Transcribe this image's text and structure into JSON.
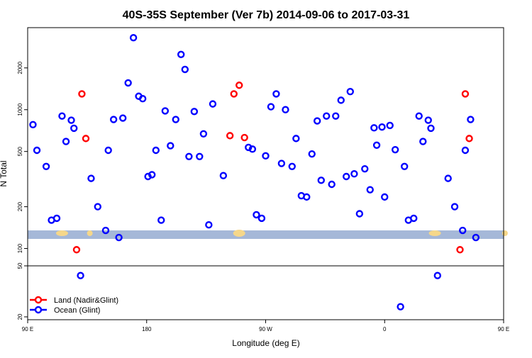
{
  "chart_data": {
    "type": "scatter",
    "title": "40S-35S September (Ver 7b)   2014-09-06 to 2017-03-31",
    "xlabel": "Longitude (deg E)",
    "ylabel": "N Total",
    "x_scale": "longitude",
    "y_scale": "log",
    "xlim": [
      90,
      450
    ],
    "upper_ylim": [
      75,
      3900
    ],
    "lower_ylim": [
      19,
      50
    ],
    "x_ticks": [
      {
        "value": 90,
        "label": "90 E"
      },
      {
        "value": 180,
        "label": "180"
      },
      {
        "value": 270,
        "label": "90 W"
      },
      {
        "value": 360,
        "label": "0"
      },
      {
        "value": 450,
        "label": "90 E"
      },
      {
        "value": 540,
        "label": "180"
      }
    ],
    "y_ticks_upper": [
      {
        "value": 100,
        "label": "100"
      },
      {
        "value": 200,
        "label": "200"
      },
      {
        "value": 500,
        "label": "500"
      },
      {
        "value": 1000,
        "label": "1000"
      },
      {
        "value": 2000,
        "label": "2000"
      }
    ],
    "y_ticks_lower": [
      {
        "value": 20,
        "label": "20"
      },
      {
        "value": 50,
        "label": "50"
      }
    ],
    "grid": false,
    "legend_position": "bottom-left",
    "land_band_color": "#a5b8d8",
    "land_color": "#f5d78a",
    "series": [
      {
        "name": "Land (Nadir&Glint)",
        "color": "#ff0000",
        "points": [
          {
            "x": 127,
            "y": 98
          },
          {
            "x": 131,
            "y": 1300
          },
          {
            "x": 134,
            "y": 620
          },
          {
            "x": 243,
            "y": 650
          },
          {
            "x": 246,
            "y": 1300
          },
          {
            "x": 250,
            "y": 1500
          },
          {
            "x": 254,
            "y": 630
          },
          {
            "x": 417,
            "y": 98
          },
          {
            "x": 421,
            "y": 1300
          },
          {
            "x": 424,
            "y": 620
          }
        ]
      },
      {
        "name": "Ocean (Glint)",
        "color": "#0000ff",
        "points": [
          {
            "x": 94,
            "y": 780
          },
          {
            "x": 97,
            "y": 510
          },
          {
            "x": 104,
            "y": 390
          },
          {
            "x": 108,
            "y": 160
          },
          {
            "x": 112,
            "y": 165
          },
          {
            "x": 116,
            "y": 900
          },
          {
            "x": 119,
            "y": 590
          },
          {
            "x": 123,
            "y": 840
          },
          {
            "x": 125,
            "y": 735
          },
          {
            "x": 130,
            "y": 42
          },
          {
            "x": 138,
            "y": 320
          },
          {
            "x": 143,
            "y": 200
          },
          {
            "x": 149,
            "y": 135
          },
          {
            "x": 151,
            "y": 510
          },
          {
            "x": 155,
            "y": 850
          },
          {
            "x": 159,
            "y": 120
          },
          {
            "x": 162,
            "y": 870
          },
          {
            "x": 166,
            "y": 1560
          },
          {
            "x": 170,
            "y": 3300
          },
          {
            "x": 174,
            "y": 1250
          },
          {
            "x": 177,
            "y": 1200
          },
          {
            "x": 181,
            "y": 330
          },
          {
            "x": 184,
            "y": 340
          },
          {
            "x": 187,
            "y": 510
          },
          {
            "x": 191,
            "y": 160
          },
          {
            "x": 194,
            "y": 980
          },
          {
            "x": 198,
            "y": 550
          },
          {
            "x": 202,
            "y": 850
          },
          {
            "x": 206,
            "y": 2500
          },
          {
            "x": 209,
            "y": 1950
          },
          {
            "x": 212,
            "y": 460
          },
          {
            "x": 216,
            "y": 970
          },
          {
            "x": 220,
            "y": 460
          },
          {
            "x": 223,
            "y": 670
          },
          {
            "x": 227,
            "y": 148
          },
          {
            "x": 230,
            "y": 1100
          },
          {
            "x": 238,
            "y": 335
          },
          {
            "x": 257,
            "y": 535
          },
          {
            "x": 260,
            "y": 520
          },
          {
            "x": 263,
            "y": 175
          },
          {
            "x": 267,
            "y": 165
          },
          {
            "x": 270,
            "y": 465
          },
          {
            "x": 274,
            "y": 1050
          },
          {
            "x": 278,
            "y": 1300
          },
          {
            "x": 282,
            "y": 410
          },
          {
            "x": 285,
            "y": 1000
          },
          {
            "x": 290,
            "y": 390
          },
          {
            "x": 293,
            "y": 620
          },
          {
            "x": 297,
            "y": 240
          },
          {
            "x": 301,
            "y": 235
          },
          {
            "x": 305,
            "y": 480
          },
          {
            "x": 309,
            "y": 830
          },
          {
            "x": 312,
            "y": 310
          },
          {
            "x": 316,
            "y": 900
          },
          {
            "x": 320,
            "y": 290
          },
          {
            "x": 323,
            "y": 900
          },
          {
            "x": 327,
            "y": 1170
          },
          {
            "x": 331,
            "y": 330
          },
          {
            "x": 334,
            "y": 1350
          },
          {
            "x": 337,
            "y": 345
          },
          {
            "x": 341,
            "y": 178
          },
          {
            "x": 345,
            "y": 375
          },
          {
            "x": 349,
            "y": 265
          },
          {
            "x": 352,
            "y": 740
          },
          {
            "x": 354,
            "y": 555
          },
          {
            "x": 358,
            "y": 750
          },
          {
            "x": 360,
            "y": 235
          },
          {
            "x": 364,
            "y": 770
          },
          {
            "x": 368,
            "y": 515
          },
          {
            "x": 372,
            "y": 24
          },
          {
            "x": 375,
            "y": 390
          },
          {
            "x": 378,
            "y": 160
          },
          {
            "x": 382,
            "y": 165
          },
          {
            "x": 386,
            "y": 900
          },
          {
            "x": 389,
            "y": 590
          },
          {
            "x": 393,
            "y": 840
          },
          {
            "x": 395,
            "y": 735
          },
          {
            "x": 400,
            "y": 42
          },
          {
            "x": 408,
            "y": 320
          },
          {
            "x": 413,
            "y": 200
          },
          {
            "x": 419,
            "y": 135
          },
          {
            "x": 421,
            "y": 510
          },
          {
            "x": 425,
            "y": 850
          },
          {
            "x": 429,
            "y": 120
          }
        ]
      }
    ]
  }
}
